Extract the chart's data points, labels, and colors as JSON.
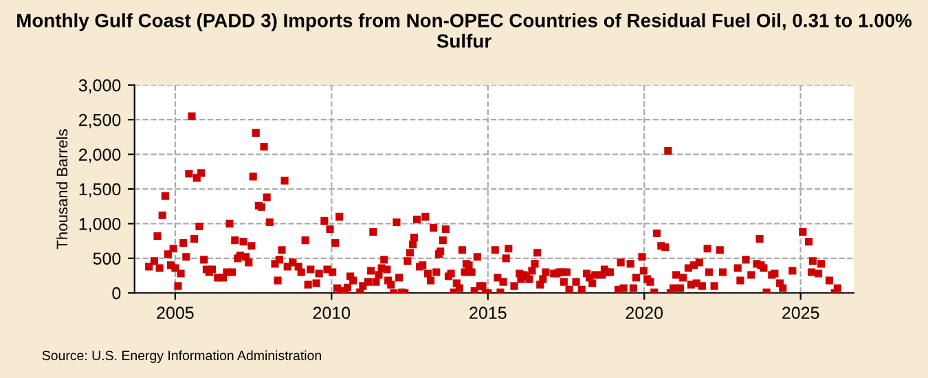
{
  "chart_data": {
    "type": "scatter",
    "title": "Monthly Gulf Coast (PADD 3) Imports from Non-OPEC Countries of Residual Fuel Oil, 0.31 to 1.00% Sulfur",
    "ylabel": "Thousand Barrels",
    "annotations": [
      "Source: U.S. Energy Information Administration"
    ],
    "color": "#cc0000",
    "marker": "square",
    "grid": true,
    "xlim": [
      2003.7,
      2026.7
    ],
    "xticks": [
      2005,
      2010,
      2015,
      2020,
      2025
    ],
    "ylim": [
      0,
      3000
    ],
    "yticks": [
      0,
      {
        "value": 500,
        "label": "500"
      },
      {
        "value": 1000,
        "label": "1,000"
      },
      {
        "value": 1500,
        "label": "1,500"
      },
      {
        "value": 2000,
        "label": "2,000"
      },
      {
        "value": 2500,
        "label": "2,500"
      },
      {
        "value": 3000,
        "label": "3,000"
      }
    ],
    "x": [
      2004.16,
      2004.33,
      2004.43,
      2004.5,
      2004.59,
      2004.68,
      2004.77,
      2004.86,
      2004.94,
      2005.0,
      2005.09,
      2005.18,
      2005.26,
      2005.35,
      2005.44,
      2005.53,
      2005.61,
      2005.69,
      2005.77,
      2005.83,
      2005.92,
      2006.0,
      2006.09,
      2006.18,
      2006.36,
      2006.53,
      2006.65,
      2006.74,
      2006.82,
      2006.91,
      2007.0,
      2007.08,
      2007.18,
      2007.26,
      2007.35,
      2007.44,
      2007.49,
      2007.58,
      2007.67,
      2007.76,
      2007.84,
      2007.93,
      2008.02,
      2008.19,
      2008.28,
      2008.33,
      2008.41,
      2008.5,
      2008.59,
      2008.76,
      2008.94,
      2009.03,
      2009.16,
      2009.25,
      2009.33,
      2009.51,
      2009.6,
      2009.77,
      2009.86,
      2009.95,
      2010.03,
      2010.12,
      2010.18,
      2010.25,
      2010.34,
      2010.43,
      2010.51,
      2010.6,
      2010.69,
      2010.91,
      2011.0,
      2011.17,
      2011.26,
      2011.33,
      2011.42,
      2011.51,
      2011.6,
      2011.68,
      2011.77,
      2011.81,
      2011.9,
      2011.99,
      2012.08,
      2012.16,
      2012.25,
      2012.34,
      2012.43,
      2012.51,
      2012.6,
      2012.64,
      2012.73,
      2012.82,
      2012.91,
      2013.0,
      2013.08,
      2013.17,
      2013.26,
      2013.35,
      2013.43,
      2013.48,
      2013.56,
      2013.65,
      2013.74,
      2013.82,
      2013.91,
      2014.0,
      2014.09,
      2014.18,
      2014.26,
      2014.31,
      2014.39,
      2014.48,
      2014.57,
      2014.66,
      2014.75,
      2014.83,
      2014.92,
      2015.0,
      2015.23,
      2015.31,
      2015.4,
      2015.49,
      2015.58,
      2015.66,
      2015.84,
      2016.01,
      2016.06,
      2016.15,
      2016.23,
      2016.32,
      2016.41,
      2016.5,
      2016.58,
      2016.67,
      2016.76,
      2016.85,
      2017.11,
      2017.2,
      2017.28,
      2017.37,
      2017.43,
      2017.52,
      2017.6,
      2017.82,
      2018.0,
      2018.16,
      2018.25,
      2018.34,
      2018.43,
      2018.65,
      2018.73,
      2018.82,
      2018.91,
      2019.17,
      2019.25,
      2019.34,
      2019.56,
      2019.65,
      2019.74,
      2019.93,
      2019.98,
      2020.1,
      2020.19,
      2020.32,
      2020.4,
      2020.54,
      2020.67,
      2020.76,
      2020.84,
      2020.93,
      2021.02,
      2021.15,
      2021.24,
      2021.41,
      2021.5,
      2021.59,
      2021.67,
      2021.76,
      2021.85,
      2022.02,
      2022.07,
      2022.24,
      2022.42,
      2022.51,
      2022.99,
      2023.07,
      2023.25,
      2023.42,
      2023.6,
      2023.69,
      2023.73,
      2023.82,
      2023.91,
      2024.08,
      2024.17,
      2024.34,
      2024.43,
      2024.74,
      2025.07,
      2025.26,
      2025.35,
      2025.39,
      2025.57,
      2025.66,
      2025.92,
      2026.09,
      2026.18
    ],
    "values": [
      380,
      460,
      820,
      360,
      1120,
      1400,
      560,
      400,
      640,
      360,
      100,
      280,
      720,
      520,
      1720,
      2550,
      780,
      1660,
      960,
      1730,
      480,
      340,
      300,
      340,
      220,
      220,
      300,
      1000,
      300,
      760,
      500,
      540,
      740,
      520,
      440,
      680,
      1680,
      2310,
      1260,
      1240,
      2110,
      1380,
      1020,
      420,
      180,
      480,
      620,
      1620,
      380,
      440,
      380,
      300,
      760,
      120,
      340,
      140,
      280,
      1040,
      340,
      920,
      300,
      720,
      70,
      1100,
      30,
      30,
      80,
      240,
      180,
      10,
      100,
      160,
      320,
      880,
      160,
      260,
      360,
      480,
      340,
      180,
      120,
      0,
      1020,
      220,
      10,
      0,
      460,
      580,
      700,
      800,
      1060,
      380,
      400,
      1100,
      280,
      180,
      940,
      300,
      560,
      600,
      760,
      920,
      240,
      280,
      10,
      140,
      70,
      620,
      300,
      420,
      400,
      300,
      30,
      520,
      100,
      100,
      0,
      0,
      620,
      220,
      10,
      160,
      500,
      640,
      100,
      280,
      200,
      260,
      240,
      200,
      320,
      420,
      580,
      120,
      200,
      300,
      280,
      280,
      300,
      300,
      160,
      300,
      50,
      160,
      50,
      280,
      220,
      140,
      260,
      260,
      340,
      300,
      300,
      50,
      440,
      70,
      420,
      70,
      220,
      520,
      320,
      200,
      160,
      10,
      860,
      680,
      660,
      2050,
      0,
      70,
      260,
      70,
      220,
      360,
      120,
      400,
      140,
      440,
      100,
      640,
      300,
      100,
      620,
      300,
      360,
      180,
      480,
      260,
      420,
      780,
      400,
      360,
      10,
      260,
      280,
      140,
      70,
      320,
      880,
      740,
      300,
      460,
      280,
      420,
      180,
      0,
      70
    ]
  }
}
